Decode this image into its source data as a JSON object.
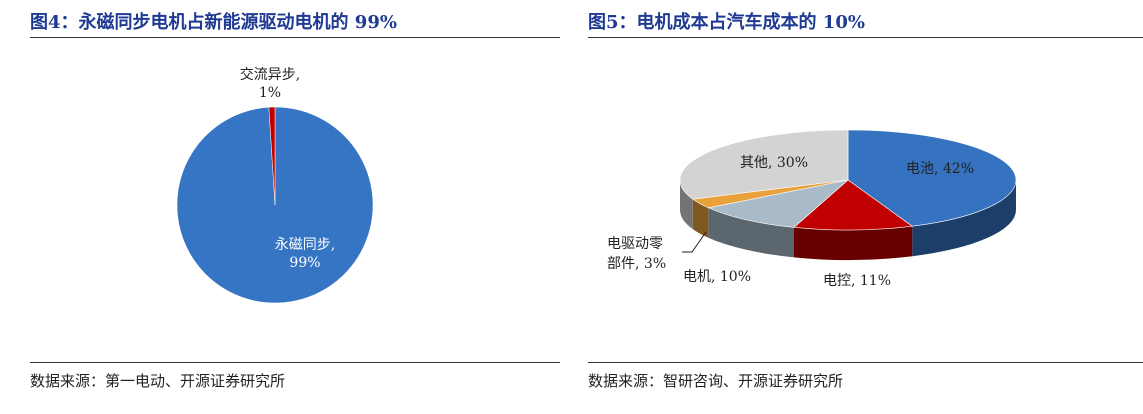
{
  "chart_data": [
    {
      "type": "pie",
      "title": "图4：永磁同步电机占新能源驱动电机的 99%",
      "categories": [
        "永磁同步,",
        "交流异步,"
      ],
      "values": [
        99,
        1
      ],
      "value_labels": [
        "99%",
        "1%"
      ],
      "colors": [
        "#3674c4",
        "#c00000"
      ],
      "source": "数据来源：第一电动、开源证券研究所"
    },
    {
      "type": "pie3d",
      "title": "图5：电机成本占汽车成本的 10%",
      "categories": [
        "电池,",
        "电控,",
        "电机,",
        "电驱动零部件,",
        "其他,"
      ],
      "values": [
        42,
        11,
        10,
        3,
        30
      ],
      "value_labels": [
        "42%",
        "11%",
        "10%",
        "3%",
        "30%"
      ],
      "colors": [
        "#3572c0",
        "#c00000",
        "#a9bac8",
        "#e9a23b",
        "#d3d3d3"
      ],
      "source": "数据来源：智研咨询、开源证券研究所"
    }
  ]
}
